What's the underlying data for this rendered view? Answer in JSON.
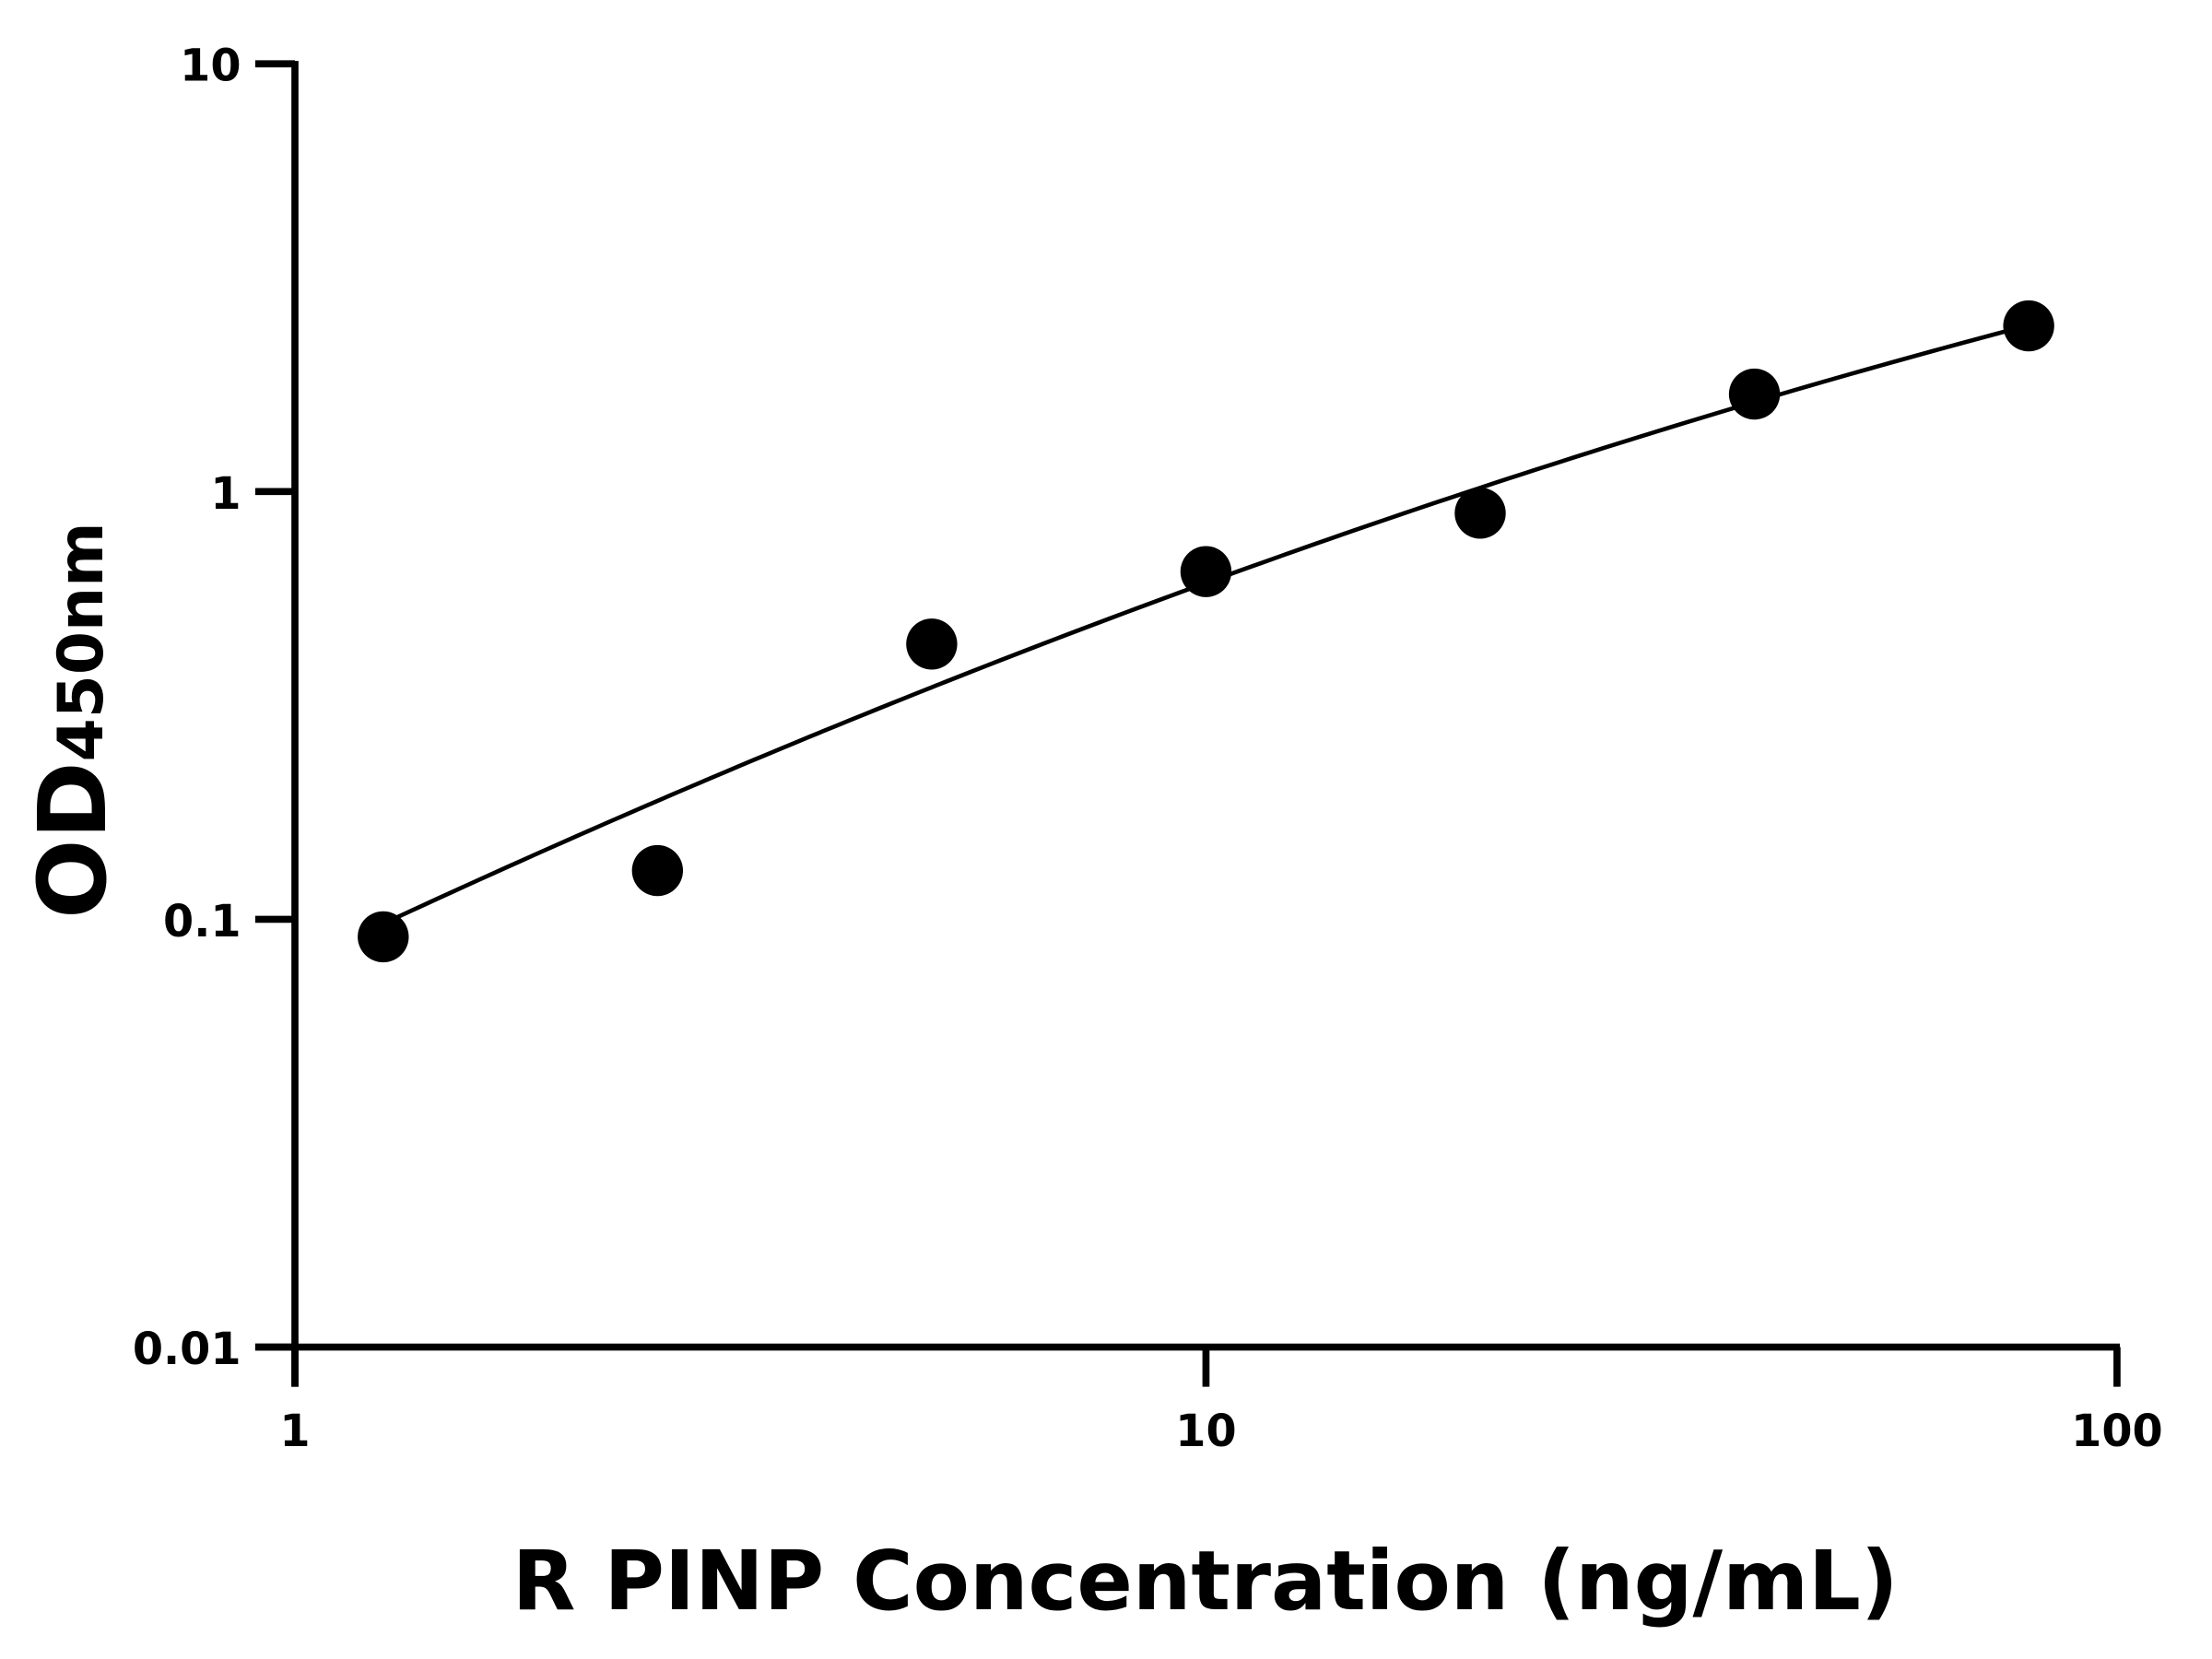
{
  "chart_data": {
    "type": "scatter",
    "xlabel": "R PINP Concentration (ng/mL)",
    "ylabel": {
      "main": "OD",
      "subscript": "450nm"
    },
    "x_scale": "log",
    "y_scale": "log",
    "xlim": [
      1,
      100
    ],
    "ylim": [
      0.01,
      10
    ],
    "x_ticks": [
      "1",
      "10",
      "100"
    ],
    "y_ticks": [
      "0.01",
      "0.1",
      "1",
      "10"
    ],
    "grid": false,
    "legend": "none",
    "series": [
      {
        "type": "scatter",
        "x": [
          1.25,
          2.5,
          5,
          10,
          20,
          40,
          80
        ],
        "y": [
          0.091,
          0.13,
          0.44,
          0.65,
          0.89,
          1.69,
          2.44
        ],
        "color": "#000000"
      },
      {
        "type": "line",
        "x": [
          1.25,
          2.5,
          5,
          10,
          20,
          40,
          80
        ],
        "y": [
          0.097,
          0.19,
          0.355,
          0.605,
          1.0,
          1.65,
          2.44
        ],
        "color": "#000000"
      }
    ]
  }
}
